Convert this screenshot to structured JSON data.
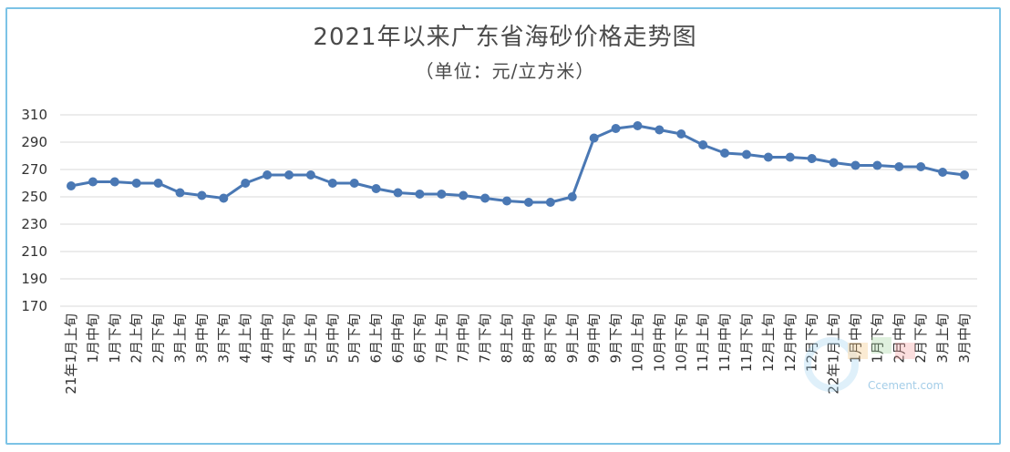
{
  "title": "2021年以来广东省海砂价格走势图",
  "subtitle": "（单位：元/立方米）",
  "chart_data": {
    "type": "line",
    "ylim": [
      170,
      310
    ],
    "yticks": [
      310,
      290,
      270,
      250,
      230,
      210,
      190,
      170
    ],
    "grid": true,
    "categories": [
      "21年1月上旬",
      "1月中旬",
      "1月下旬",
      "2月上旬",
      "2月下旬",
      "3月上旬",
      "3月中旬",
      "3月下旬",
      "4月上旬",
      "4月中旬",
      "4月下旬",
      "5月上旬",
      "5月中旬",
      "5月下旬",
      "6月上旬",
      "6月中旬",
      "6月下旬",
      "7月上旬",
      "7月中旬",
      "7月下旬",
      "8月上旬",
      "8月中旬",
      "8月下旬",
      "9月上旬",
      "9月中旬",
      "9月下旬",
      "10月上旬",
      "10月中旬",
      "10月下旬",
      "11月上旬",
      "11月中旬",
      "11月下旬",
      "12月上旬",
      "12月中旬",
      "12月下旬",
      "22年1月上旬",
      "1月中旬",
      "1月下旬",
      "2月中旬",
      "2月下旬",
      "3月上旬",
      "3月中旬"
    ],
    "series": [
      {
        "color": "#4a78b4",
        "values": [
          258,
          261,
          261,
          260,
          260,
          253,
          251,
          249,
          260,
          266,
          266,
          266,
          260,
          260,
          256,
          253,
          252,
          252,
          251,
          249,
          247,
          246,
          246,
          250,
          293,
          300,
          302,
          299,
          296,
          288,
          282,
          281,
          279,
          279,
          278,
          275,
          273,
          273,
          272,
          272,
          268,
          266
        ]
      }
    ]
  },
  "watermark": {
    "text": "Ccement.com"
  }
}
